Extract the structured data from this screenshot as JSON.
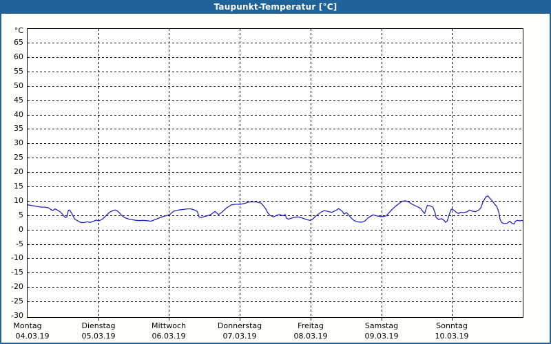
{
  "window": {
    "title": "Taupunkt-Temperatur [°C]"
  },
  "colors": {
    "titlebar_bg": "#20639b",
    "window_border": "#20639b",
    "title_text": "#ffffff",
    "content_bg": "#fdfdfa",
    "plot_bg": "#ffffff",
    "plot_border": "#000000",
    "gridline": "#000000",
    "axis_text": "#000000",
    "line": "#2222bb"
  },
  "chart_data": {
    "type": "line",
    "title": "Taupunkt-Temperatur [°C]",
    "ylabel": "",
    "y_unit_label": "°C",
    "ylim": [
      -30,
      69.8
    ],
    "y_tick_step": 5,
    "y_tick_labels": [
      "65",
      "60",
      "55",
      "50",
      "45",
      "40",
      "35",
      "30",
      "25",
      "20",
      "15",
      "10",
      "5",
      "0",
      "-5",
      "-10",
      "-15",
      "-20",
      "-25",
      "-30"
    ],
    "grid": "dashed",
    "legend": "none",
    "x_axis": {
      "unit": "hours",
      "range": [
        0,
        168
      ],
      "days": [
        {
          "name": "Montag",
          "date": "04.03.19"
        },
        {
          "name": "Dienstag",
          "date": "05.03.19"
        },
        {
          "name": "Mittwoch",
          "date": "06.03.19"
        },
        {
          "name": "Donnerstag",
          "date": "07.03.19"
        },
        {
          "name": "Freitag",
          "date": "08.03.19"
        },
        {
          "name": "Samstag",
          "date": "09.03.19"
        },
        {
          "name": "Sonntag",
          "date": "10.03.19"
        }
      ]
    },
    "series": [
      {
        "name": "Taupunkt-Temperatur",
        "color": "#2222bb",
        "points": [
          [
            0,
            8.6
          ],
          [
            1.2,
            8.4
          ],
          [
            2.3,
            8.2
          ],
          [
            3.5,
            8.0
          ],
          [
            4.7,
            7.8
          ],
          [
            5.8,
            7.8
          ],
          [
            7.0,
            7.6
          ],
          [
            7.7,
            7.1
          ],
          [
            8.6,
            6.6
          ],
          [
            9.3,
            7.2
          ],
          [
            10.0,
            6.8
          ],
          [
            11.0,
            6.2
          ],
          [
            11.8,
            5.4
          ],
          [
            12.4,
            4.6
          ],
          [
            12.8,
            4.2
          ],
          [
            13.4,
            4.4
          ],
          [
            13.8,
            6.6
          ],
          [
            14.3,
            6.8
          ],
          [
            15.2,
            5.2
          ],
          [
            16.0,
            3.6
          ],
          [
            16.6,
            3.3
          ],
          [
            18.0,
            2.5
          ],
          [
            19.0,
            2.4
          ],
          [
            20.3,
            2.7
          ],
          [
            21.2,
            2.5
          ],
          [
            22.4,
            2.9
          ],
          [
            23.3,
            3.3
          ],
          [
            24.2,
            3.0
          ],
          [
            25.4,
            3.6
          ],
          [
            26.6,
            4.8
          ],
          [
            27.8,
            6.0
          ],
          [
            28.9,
            6.6
          ],
          [
            29.6,
            6.8
          ],
          [
            30.3,
            6.6
          ],
          [
            31.0,
            6.0
          ],
          [
            31.9,
            5.0
          ],
          [
            32.6,
            4.4
          ],
          [
            33.3,
            4.0
          ],
          [
            34.5,
            3.6
          ],
          [
            35.6,
            3.4
          ],
          [
            36.8,
            3.2
          ],
          [
            38.0,
            3.1
          ],
          [
            39.1,
            3.2
          ],
          [
            40.3,
            3.1
          ],
          [
            41.9,
            2.9
          ],
          [
            43.6,
            3.6
          ],
          [
            45.0,
            4.2
          ],
          [
            46.6,
            4.7
          ],
          [
            48.2,
            5.2
          ],
          [
            49.6,
            6.4
          ],
          [
            51.3,
            6.8
          ],
          [
            52.9,
            7.0
          ],
          [
            54.3,
            7.2
          ],
          [
            55.4,
            7.2
          ],
          [
            56.6,
            6.8
          ],
          [
            57.6,
            6.3
          ],
          [
            58.2,
            4.4
          ],
          [
            58.9,
            4.2
          ],
          [
            60.6,
            4.7
          ],
          [
            62.2,
            5.2
          ],
          [
            62.9,
            5.8
          ],
          [
            63.6,
            6.3
          ],
          [
            64.8,
            5.2
          ],
          [
            65.9,
            6.0
          ],
          [
            67.6,
            7.6
          ],
          [
            69.2,
            8.6
          ],
          [
            70.6,
            8.8
          ],
          [
            72.2,
            8.8
          ],
          [
            73.9,
            9.2
          ],
          [
            75.3,
            9.6
          ],
          [
            77.6,
            9.6
          ],
          [
            79.2,
            9.2
          ],
          [
            79.9,
            8.4
          ],
          [
            80.8,
            7.2
          ],
          [
            81.5,
            5.8
          ],
          [
            82.2,
            5.0
          ],
          [
            83.4,
            4.4
          ],
          [
            84.6,
            5.0
          ],
          [
            85.5,
            5.2
          ],
          [
            86.7,
            4.8
          ],
          [
            87.4,
            5.2
          ],
          [
            87.8,
            4.0
          ],
          [
            88.5,
            3.6
          ],
          [
            90.2,
            4.2
          ],
          [
            91.6,
            4.4
          ],
          [
            93.2,
            4.0
          ],
          [
            94.8,
            3.4
          ],
          [
            95.8,
            3.2
          ],
          [
            96.7,
            3.6
          ],
          [
            97.9,
            4.8
          ],
          [
            99.5,
            6.0
          ],
          [
            100.7,
            6.6
          ],
          [
            101.8,
            6.3
          ],
          [
            103.2,
            6.0
          ],
          [
            104.9,
            6.8
          ],
          [
            105.5,
            7.3
          ],
          [
            106.7,
            6.4
          ],
          [
            107.4,
            5.4
          ],
          [
            108.2,
            5.9
          ],
          [
            108.9,
            5.1
          ],
          [
            109.8,
            4.0
          ],
          [
            110.7,
            3.2
          ],
          [
            111.5,
            2.8
          ],
          [
            112.5,
            2.6
          ],
          [
            113.5,
            2.6
          ],
          [
            114.5,
            3.0
          ],
          [
            115.3,
            3.9
          ],
          [
            116.5,
            4.7
          ],
          [
            117.2,
            5.1
          ],
          [
            118.4,
            4.8
          ],
          [
            119.6,
            4.5
          ],
          [
            120.7,
            4.5
          ],
          [
            121.7,
            4.8
          ],
          [
            122.4,
            5.6
          ],
          [
            123.5,
            6.8
          ],
          [
            124.7,
            8.0
          ],
          [
            125.6,
            8.7
          ],
          [
            127.0,
            9.8
          ],
          [
            128.2,
            10.0
          ],
          [
            129.3,
            9.6
          ],
          [
            130.5,
            8.8
          ],
          [
            132.1,
            8.0
          ],
          [
            133.3,
            7.4
          ],
          [
            134.0,
            6.4
          ],
          [
            134.7,
            5.6
          ],
          [
            135.6,
            8.4
          ],
          [
            136.8,
            8.2
          ],
          [
            137.5,
            7.8
          ],
          [
            138.2,
            6.0
          ],
          [
            138.6,
            4.2
          ],
          [
            139.4,
            3.5
          ],
          [
            140.5,
            3.8
          ],
          [
            141.3,
            3.2
          ],
          [
            141.8,
            2.5
          ],
          [
            142.4,
            3.0
          ],
          [
            142.9,
            4.8
          ],
          [
            143.6,
            6.8
          ],
          [
            144.0,
            7.2
          ],
          [
            145.0,
            6.4
          ],
          [
            145.6,
            5.9
          ],
          [
            146.3,
            5.6
          ],
          [
            146.8,
            6.0
          ],
          [
            148.0,
            5.9
          ],
          [
            149.2,
            6.2
          ],
          [
            149.9,
            6.8
          ],
          [
            150.8,
            6.4
          ],
          [
            152.0,
            6.2
          ],
          [
            153.1,
            6.8
          ],
          [
            153.8,
            7.6
          ],
          [
            154.5,
            9.6
          ],
          [
            155.5,
            11.4
          ],
          [
            156.2,
            11.7
          ],
          [
            156.9,
            10.8
          ],
          [
            157.8,
            9.8
          ],
          [
            158.5,
            8.8
          ],
          [
            159.2,
            8.0
          ],
          [
            159.9,
            6.0
          ],
          [
            160.3,
            3.6
          ],
          [
            160.8,
            2.5
          ],
          [
            161.5,
            2.1
          ],
          [
            162.7,
            2.2
          ],
          [
            163.6,
            2.9
          ],
          [
            164.3,
            2.2
          ],
          [
            165.0,
            1.9
          ],
          [
            165.5,
            2.9
          ],
          [
            166.2,
            3.2
          ],
          [
            167.1,
            3.0
          ],
          [
            167.6,
            3.2
          ],
          [
            168.0,
            3.1
          ]
        ]
      }
    ]
  }
}
